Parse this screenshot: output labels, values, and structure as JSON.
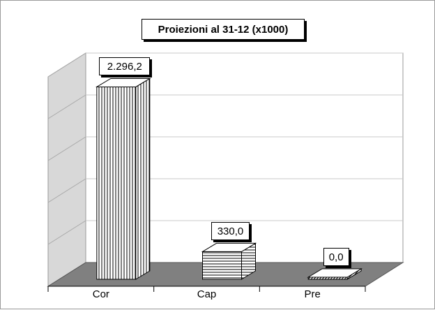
{
  "chart_data": {
    "type": "bar",
    "title": "Proiezioni al 31-12 (x1000)",
    "categories": [
      "Cor",
      "Cap",
      "Pre"
    ],
    "values": [
      2296.2,
      330.0,
      0.0
    ],
    "value_labels": [
      "2.296,2",
      "330,0",
      "0,0"
    ],
    "ylim": [
      0,
      2500
    ],
    "grid": true,
    "legend": "none",
    "style": "3d-hatched"
  },
  "colors": {
    "floor": "#808080",
    "wall": "#d8d8d8",
    "bar_fill": "#ffffff",
    "bar_hatch": "#000000",
    "gridline": "#c8c8c8"
  }
}
